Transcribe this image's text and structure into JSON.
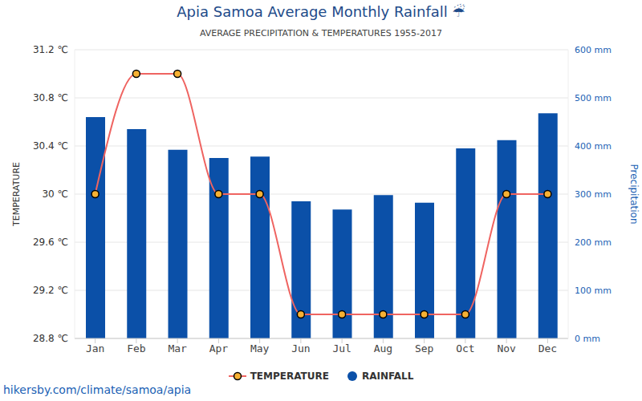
{
  "chart_data": {
    "type": "bar",
    "title": "Apia Samoa Average Monthly Rainfall ☔",
    "subtitle": "AVERAGE PRECIPITATION & TEMPERATURES 1955-2017",
    "source": "hikersby.com/climate/samoa/apia",
    "categories": [
      "Jan",
      "Feb",
      "Mar",
      "Apr",
      "May",
      "Jun",
      "Jul",
      "Aug",
      "Sep",
      "Oct",
      "Nov",
      "Dec"
    ],
    "series": [
      {
        "name": "TEMPERATURE",
        "type": "line",
        "color": "#ef6461",
        "marker": "circle",
        "values": [
          30,
          31,
          31,
          30,
          30,
          29,
          29,
          29,
          29,
          29,
          30,
          30
        ]
      },
      {
        "name": "RAINFALL",
        "type": "bar",
        "color": "#0b50a8",
        "axis": "y2",
        "values": [
          460,
          435,
          392,
          375,
          378,
          285,
          268,
          298,
          282,
          395,
          412,
          468
        ]
      }
    ],
    "ylabel": "TEMPERATURE",
    "y2label": "Precipitation",
    "ylim": [
      28.8,
      31.2
    ],
    "yticks": [
      {
        "value": 28.8,
        "label": "28.8 ℃"
      },
      {
        "value": 29.2,
        "label": "29.2 ℃"
      },
      {
        "value": 29.6,
        "label": "29.6 ℃"
      },
      {
        "value": 30,
        "label": "30 ℃"
      },
      {
        "value": 30.4,
        "label": "30.4 ℃"
      },
      {
        "value": 30.8,
        "label": "30.8 ℃"
      },
      {
        "value": 31.2,
        "label": "31.2 ℃"
      }
    ],
    "y2lim": [
      0,
      600
    ],
    "y2ticks": [
      {
        "value": 0,
        "label": "0 mm"
      },
      {
        "value": 100,
        "label": "100 mm"
      },
      {
        "value": 200,
        "label": "200 mm"
      },
      {
        "value": 300,
        "label": "300 mm"
      },
      {
        "value": 400,
        "label": "400 mm"
      },
      {
        "value": 500,
        "label": "500 mm"
      },
      {
        "value": 600,
        "label": "600 mm"
      }
    ],
    "grid": true,
    "legend": "bottom"
  }
}
